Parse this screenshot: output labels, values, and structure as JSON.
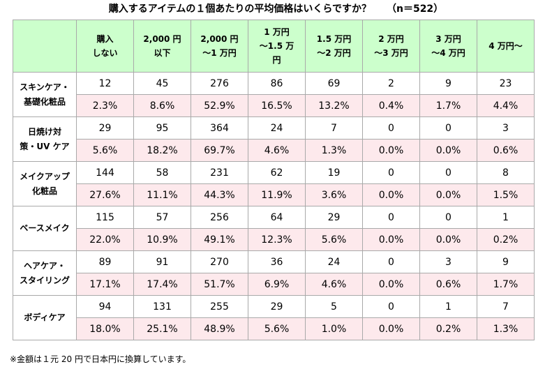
{
  "title": "購入するアイテムの１個あたりの平均価格はいくらですか？",
  "sample": "（n＝522）",
  "columns": [
    [
      "購入",
      "しない"
    ],
    [
      "2,000 円",
      "以下"
    ],
    [
      "2,000 円",
      "～1 万円"
    ],
    [
      "1 万円",
      "～1.5 万",
      "円"
    ],
    [
      "1.5 万円",
      "～2 万円"
    ],
    [
      "2 万円",
      "～3 万円"
    ],
    [
      "3 万円",
      "～4 万円"
    ],
    [
      "4 万円～"
    ]
  ],
  "rows": [
    {
      "label": [
        "スキンケア・",
        "基礎化粧品"
      ],
      "counts": [
        "12",
        "45",
        "276",
        "86",
        "69",
        "2",
        "9",
        "23"
      ],
      "percents": [
        "2.3%",
        "8.6%",
        "52.9%",
        "16.5%",
        "13.2%",
        "0.4%",
        "1.7%",
        "4.4%"
      ]
    },
    {
      "label": [
        "日焼け対",
        "策・UV ケア"
      ],
      "counts": [
        "29",
        "95",
        "364",
        "24",
        "7",
        "0",
        "0",
        "3"
      ],
      "percents": [
        "5.6%",
        "18.2%",
        "69.7%",
        "4.6%",
        "1.3%",
        "0.0%",
        "0.0%",
        "0.6%"
      ]
    },
    {
      "label": [
        "メイクアップ",
        "化粧品"
      ],
      "counts": [
        "144",
        "58",
        "231",
        "62",
        "19",
        "0",
        "0",
        "8"
      ],
      "percents": [
        "27.6%",
        "11.1%",
        "44.3%",
        "11.9%",
        "3.6%",
        "0.0%",
        "0.0%",
        "1.5%"
      ]
    },
    {
      "label": [
        "ベースメイク"
      ],
      "counts": [
        "115",
        "57",
        "256",
        "64",
        "29",
        "0",
        "0",
        "1"
      ],
      "percents": [
        "22.0%",
        "10.9%",
        "49.1%",
        "12.3%",
        "5.6%",
        "0.0%",
        "0.0%",
        "0.2%"
      ]
    },
    {
      "label": [
        "ヘアケア・",
        "スタイリング"
      ],
      "counts": [
        "89",
        "91",
        "270",
        "36",
        "24",
        "0",
        "3",
        "9"
      ],
      "percents": [
        "17.1%",
        "17.4%",
        "51.7%",
        "6.9%",
        "4.6%",
        "0.0%",
        "0.6%",
        "1.7%"
      ]
    },
    {
      "label": [
        "ボディケア"
      ],
      "counts": [
        "94",
        "131",
        "255",
        "29",
        "5",
        "0",
        "1",
        "7"
      ],
      "percents": [
        "18.0%",
        "25.1%",
        "48.9%",
        "5.6%",
        "1.0%",
        "0.0%",
        "0.2%",
        "1.3%"
      ]
    }
  ],
  "note": "※金額は１元 20 円で日本円に換算しています。",
  "colors": {
    "header_bg": "#ccffcc",
    "percent_row_bg": "#fde9ec",
    "border": "#a9a9a9"
  },
  "chart_data": {
    "type": "table",
    "title": "購入するアイテムの１個あたりの平均価格はいくらですか？ （n＝522）",
    "categories": [
      "購入しない",
      "2,000 円以下",
      "2,000 円～1 万円",
      "1 万円～1.5 万円",
      "1.5 万円～2 万円",
      "2 万円～3 万円",
      "3 万円～4 万円",
      "4 万円～"
    ],
    "series": [
      {
        "name": "スキンケア・基礎化粧品",
        "values": [
          12,
          45,
          276,
          86,
          69,
          2,
          9,
          23
        ],
        "percents": [
          2.3,
          8.6,
          52.9,
          16.5,
          13.2,
          0.4,
          1.7,
          4.4
        ]
      },
      {
        "name": "日焼け対策・UV ケア",
        "values": [
          29,
          95,
          364,
          24,
          7,
          0,
          0,
          3
        ],
        "percents": [
          5.6,
          18.2,
          69.7,
          4.6,
          1.3,
          0.0,
          0.0,
          0.6
        ]
      },
      {
        "name": "メイクアップ化粧品",
        "values": [
          144,
          58,
          231,
          62,
          19,
          0,
          0,
          8
        ],
        "percents": [
          27.6,
          11.1,
          44.3,
          11.9,
          3.6,
          0.0,
          0.0,
          1.5
        ]
      },
      {
        "name": "ベースメイク",
        "values": [
          115,
          57,
          256,
          64,
          29,
          0,
          0,
          1
        ],
        "percents": [
          22.0,
          10.9,
          49.1,
          12.3,
          5.6,
          0.0,
          0.0,
          0.2
        ]
      },
      {
        "name": "ヘアケア・スタイリング",
        "values": [
          89,
          91,
          270,
          36,
          24,
          0,
          3,
          9
        ],
        "percents": [
          17.1,
          17.4,
          51.7,
          6.9,
          4.6,
          0.0,
          0.6,
          1.7
        ]
      },
      {
        "name": "ボディケア",
        "values": [
          94,
          131,
          255,
          29,
          5,
          0,
          1,
          7
        ],
        "percents": [
          18.0,
          25.1,
          48.9,
          5.6,
          1.0,
          0.0,
          0.2,
          1.3
        ]
      }
    ]
  }
}
